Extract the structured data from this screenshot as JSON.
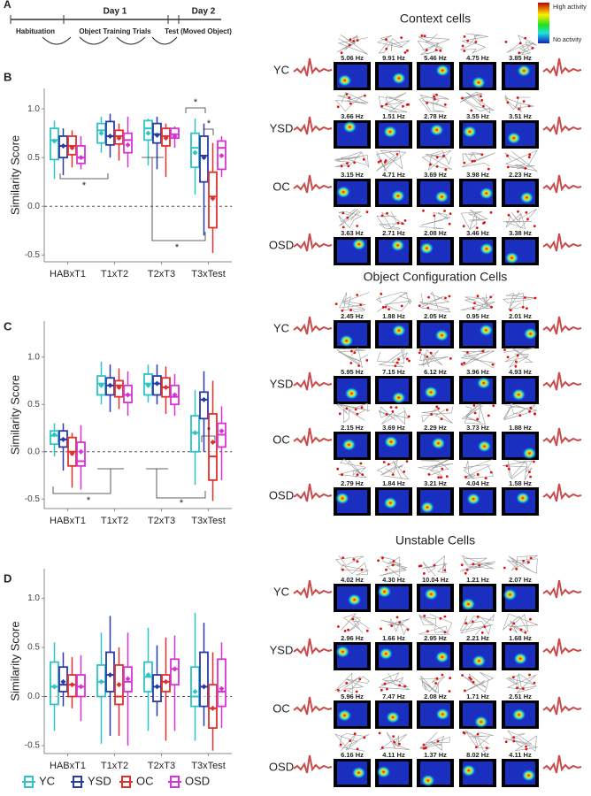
{
  "figure_a": {
    "panel_label": "A",
    "day1": "Day 1",
    "day2": "Day 2",
    "stages": [
      "Habituation",
      "Object Training Trials",
      "Test (Moved Object)"
    ]
  },
  "color_scale": {
    "high": "High activity",
    "low": "No activity"
  },
  "chart_data": [
    {
      "type": "box",
      "panel_label": "B",
      "ylabel": "Similarity Score",
      "categories": [
        "HABxT1",
        "T1xT2",
        "T2xT3",
        "T3xTest"
      ],
      "ylim": [
        -0.57,
        1.21
      ],
      "yticks": [
        -0.5,
        {
          "value": 0,
          "label": "0.0"
        },
        0.5,
        {
          "value": 1,
          "label": "1.0"
        }
      ],
      "reference_line": 0,
      "annotations": [
        "*",
        "*",
        "*",
        "*"
      ],
      "series": [
        {
          "color": "#2ec4c4",
          "values": [
            {
              "min": 0.28,
              "q1": 0.48,
              "median": 0.68,
              "q3": 0.8,
              "max": 0.88,
              "mean": 0.67
            },
            {
              "min": 0.55,
              "q1": 0.65,
              "median": 0.78,
              "q3": 0.85,
              "max": 0.92,
              "mean": 0.75
            },
            {
              "min": 0.42,
              "q1": 0.68,
              "median": 0.8,
              "q3": 0.88,
              "max": 0.9,
              "mean": 0.75
            },
            {
              "min": 0.12,
              "q1": 0.4,
              "median": 0.6,
              "q3": 0.75,
              "max": 0.9,
              "mean": 0.55
            }
          ]
        },
        {
          "color": "#2a3aa8",
          "values": [
            {
              "min": 0.32,
              "q1": 0.5,
              "median": 0.62,
              "q3": 0.72,
              "max": 0.8,
              "mean": 0.62
            },
            {
              "min": 0.5,
              "q1": 0.63,
              "median": 0.72,
              "q3": 0.87,
              "max": 0.95,
              "mean": 0.72
            },
            {
              "min": 0.38,
              "q1": 0.65,
              "median": 0.74,
              "q3": 0.85,
              "max": 0.92,
              "mean": 0.73
            },
            {
              "min": -0.3,
              "q1": 0.25,
              "median": 0.52,
              "q3": 0.72,
              "max": 0.85,
              "mean": 0.5
            }
          ]
        },
        {
          "color": "#e0302e",
          "values": [
            {
              "min": 0.4,
              "q1": 0.53,
              "median": 0.62,
              "q3": 0.72,
              "max": 0.78,
              "mean": 0.6
            },
            {
              "min": 0.47,
              "q1": 0.64,
              "median": 0.72,
              "q3": 0.78,
              "max": 0.85,
              "mean": 0.7
            },
            {
              "min": 0.3,
              "q1": 0.62,
              "median": 0.72,
              "q3": 0.8,
              "max": 0.85,
              "mean": 0.7
            },
            {
              "min": -0.48,
              "q1": -0.22,
              "median": 0.1,
              "q3": 0.35,
              "max": 0.65,
              "mean": 0.08
            }
          ]
        },
        {
          "color": "#d633d6",
          "values": [
            {
              "min": 0.38,
              "q1": 0.44,
              "median": 0.5,
              "q3": 0.62,
              "max": 0.72,
              "mean": 0.5
            },
            {
              "min": 0.4,
              "q1": 0.55,
              "median": 0.68,
              "q3": 0.75,
              "max": 0.92,
              "mean": 0.63
            },
            {
              "min": 0.6,
              "q1": 0.7,
              "median": 0.74,
              "q3": 0.8,
              "max": 0.82,
              "mean": 0.72
            },
            {
              "min": 0.3,
              "q1": 0.38,
              "median": 0.6,
              "q3": 0.67,
              "max": 0.72,
              "mean": 0.52
            }
          ]
        }
      ]
    },
    {
      "type": "box",
      "panel_label": "C",
      "ylabel": "Similarity Score",
      "categories": [
        "HABxT1",
        "T1xT2",
        "T2xT3",
        "T3xTest"
      ],
      "ylim": [
        -0.6,
        1.38
      ],
      "yticks": [
        -0.5,
        {
          "value": 0,
          "label": "0.0"
        },
        0.5,
        {
          "value": 1,
          "label": "1.0"
        }
      ],
      "reference_line": 0,
      "annotations": [
        "*",
        "*",
        "*"
      ],
      "series": [
        {
          "color": "#2ec4c4",
          "values": [
            {
              "min": -0.05,
              "q1": 0.08,
              "median": 0.17,
              "q3": 0.22,
              "max": 0.3,
              "mean": 0.18
            },
            {
              "min": 0.5,
              "q1": 0.6,
              "median": 0.72,
              "q3": 0.8,
              "max": 0.95,
              "mean": 0.7
            },
            {
              "min": 0.52,
              "q1": 0.6,
              "median": 0.72,
              "q3": 0.82,
              "max": 0.92,
              "mean": 0.7
            },
            {
              "min": -0.35,
              "q1": 0,
              "median": 0.2,
              "q3": 0.38,
              "max": 0.65,
              "mean": 0.2
            }
          ]
        },
        {
          "color": "#2a3aa8",
          "values": [
            {
              "min": -0.2,
              "q1": 0.05,
              "median": 0.13,
              "q3": 0.22,
              "max": 0.3,
              "mean": 0.13
            },
            {
              "min": 0.42,
              "q1": 0.6,
              "median": 0.7,
              "q3": 0.78,
              "max": 0.92,
              "mean": 0.7
            },
            {
              "min": 0.5,
              "q1": 0.6,
              "median": 0.72,
              "q3": 0.8,
              "max": 0.92,
              "mean": 0.72
            },
            {
              "min": 0,
              "q1": 0.35,
              "median": 0.55,
              "q3": 0.63,
              "max": 0.85,
              "mean": 0.55
            }
          ]
        },
        {
          "color": "#e0302e",
          "values": [
            {
              "min": -0.38,
              "q1": -0.15,
              "median": 0,
              "q3": 0.15,
              "max": 0.2,
              "mean": -0.02
            },
            {
              "min": 0.45,
              "q1": 0.58,
              "median": 0.7,
              "q3": 0.75,
              "max": 0.88,
              "mean": 0.68
            },
            {
              "min": 0.4,
              "q1": 0.58,
              "median": 0.68,
              "q3": 0.78,
              "max": 0.9,
              "mean": 0.68
            },
            {
              "min": -0.52,
              "q1": -0.3,
              "median": -0.05,
              "q3": 0.4,
              "max": 0.75,
              "mean": 0.1
            }
          ]
        },
        {
          "color": "#d633d6",
          "values": [
            {
              "min": -0.4,
              "q1": -0.15,
              "median": -0.1,
              "q3": 0.1,
              "max": 0.28,
              "mean": 0
            },
            {
              "min": 0.38,
              "q1": 0.52,
              "median": 0.6,
              "q3": 0.7,
              "max": 0.85,
              "mean": 0.6
            },
            {
              "min": 0.38,
              "q1": 0.5,
              "median": 0.58,
              "q3": 0.7,
              "max": 0.82,
              "mean": 0.6
            },
            {
              "min": -0.3,
              "q1": 0.05,
              "median": 0.18,
              "q3": 0.3,
              "max": 0.48,
              "mean": 0.22
            }
          ]
        }
      ]
    },
    {
      "type": "box",
      "panel_label": "D",
      "ylabel": "Similarity Score",
      "categories": [
        "HABxT1",
        "T1xT2",
        "T2xT3",
        "T3xTest"
      ],
      "ylim": [
        -0.58,
        1.3
      ],
      "yticks": [
        -0.5,
        {
          "value": 0,
          "label": "0.0"
        },
        0.5,
        {
          "value": 1,
          "label": "1.0"
        }
      ],
      "reference_line": 0,
      "legend": "bottom",
      "series": [
        {
          "name": "YC",
          "color": "#2ec4c4",
          "values": [
            {
              "min": -0.35,
              "q1": -0.08,
              "median": 0.1,
              "q3": 0.35,
              "max": 0.55,
              "mean": 0.1
            },
            {
              "min": -0.48,
              "q1": 0,
              "median": 0.15,
              "q3": 0.32,
              "max": 0.65,
              "mean": 0.15
            },
            {
              "min": -0.35,
              "q1": 0.05,
              "median": 0.2,
              "q3": 0.35,
              "max": 0.7,
              "mean": 0.22
            },
            {
              "min": -0.45,
              "q1": -0.1,
              "median": 0,
              "q3": 0.3,
              "max": 0.85,
              "mean": 0.05
            }
          ]
        },
        {
          "name": "YSD",
          "color": "#2a3aa8",
          "values": [
            {
              "min": -0.1,
              "q1": 0.05,
              "median": 0.12,
              "q3": 0.3,
              "max": 0.45,
              "mean": 0.15
            },
            {
              "min": -0.4,
              "q1": 0.05,
              "median": 0.22,
              "q3": 0.45,
              "max": 0.82,
              "mean": 0.22
            },
            {
              "min": -0.2,
              "q1": -0.05,
              "median": 0.1,
              "q3": 0.22,
              "max": 0.52,
              "mean": 0.1
            },
            {
              "min": -0.3,
              "q1": -0.1,
              "median": 0.1,
              "q3": 0.45,
              "max": 0.75,
              "mean": 0.1
            }
          ]
        },
        {
          "name": "OC",
          "color": "#e0302e",
          "values": [
            {
              "min": -0.12,
              "q1": 0,
              "median": 0.12,
              "q3": 0.22,
              "max": 0.4,
              "mean": 0.12
            },
            {
              "min": -0.4,
              "q1": -0.08,
              "median": 0,
              "q3": 0.32,
              "max": 0.5,
              "mean": 0.12
            },
            {
              "min": -0.45,
              "q1": 0.05,
              "median": 0.15,
              "q3": 0.22,
              "max": 0.6,
              "mean": 0.15
            },
            {
              "min": -0.55,
              "q1": -0.32,
              "median": -0.12,
              "q3": 0.12,
              "max": 0.45,
              "mean": -0.12
            }
          ]
        },
        {
          "name": "OSD",
          "color": "#d633d6",
          "values": [
            {
              "min": -0.25,
              "q1": 0,
              "median": 0.1,
              "q3": 0.22,
              "max": 0.42,
              "mean": 0.1
            },
            {
              "min": -0.5,
              "q1": 0.05,
              "median": 0.15,
              "q3": 0.3,
              "max": 0.65,
              "mean": 0.18
            },
            {
              "min": -0.35,
              "q1": 0.12,
              "median": 0.28,
              "q3": 0.38,
              "max": 0.62,
              "mean": 0.28
            },
            {
              "min": -0.32,
              "q1": -0.1,
              "median": 0.05,
              "q3": 0.38,
              "max": 0.55,
              "mean": 0.08
            }
          ]
        }
      ]
    }
  ],
  "cell_panels": [
    {
      "title": "Context cells",
      "rows": [
        {
          "label": "YC",
          "rates": [
            "5.06 Hz",
            "9.91 Hz",
            "5.46 Hz",
            "4.75 Hz",
            "3.85 Hz"
          ]
        },
        {
          "label": "YSD",
          "rates": [
            "3.66 Hz",
            "1.51 Hz",
            "2.78 Hz",
            "3.55 Hz",
            "3.51 Hz"
          ]
        },
        {
          "label": "OC",
          "rates": [
            "3.15 Hz",
            "4.71 Hz",
            "3.69 Hz",
            "3.98 Hz",
            "2.23 Hz"
          ]
        },
        {
          "label": "OSD",
          "rates": [
            "3.63 Hz",
            "2.71 Hz",
            "2.08 Hz",
            "3.46 Hz",
            "3.38 Hz"
          ]
        }
      ]
    },
    {
      "title": "Object Configuration Cells",
      "rows": [
        {
          "label": "YC",
          "rates": [
            "2.45 Hz",
            "1.88 Hz",
            "2.05 Hz",
            "0.95 Hz",
            "2.01 Hz"
          ]
        },
        {
          "label": "YSD",
          "rates": [
            "5.95 Hz",
            "7.15 Hz",
            "6.12 Hz",
            "3.96 Hz",
            "4.93 Hz"
          ]
        },
        {
          "label": "OC",
          "rates": [
            "2.15 Hz",
            "3.69 Hz",
            "2.29 Hz",
            "3.73 Hz",
            "1.88 Hz"
          ]
        },
        {
          "label": "OSD",
          "rates": [
            "2.79 Hz",
            "1.84 Hz",
            "3.21 Hz",
            "4.04 Hz",
            "1.58 Hz"
          ]
        }
      ]
    },
    {
      "title": "Unstable Cells",
      "rows": [
        {
          "label": "YC",
          "rates": [
            "4.02 Hz",
            "4.30 Hz",
            "10.04 Hz",
            "1.21 Hz",
            "2.07 Hz"
          ]
        },
        {
          "label": "YSD",
          "rates": [
            "2.96 Hz",
            "1.66 Hz",
            "2.95 Hz",
            "2.21 Hz",
            "1.68 Hz"
          ]
        },
        {
          "label": "OC",
          "rates": [
            "5.96 Hz",
            "7.47 Hz",
            "2.08 Hz",
            "1.71 Hz",
            "2.51 Hz"
          ]
        },
        {
          "label": "OSD",
          "rates": [
            "6.16 Hz",
            "4.11 Hz",
            "1.37 Hz",
            "8.02 Hz",
            "4.11 Hz"
          ]
        }
      ]
    }
  ]
}
